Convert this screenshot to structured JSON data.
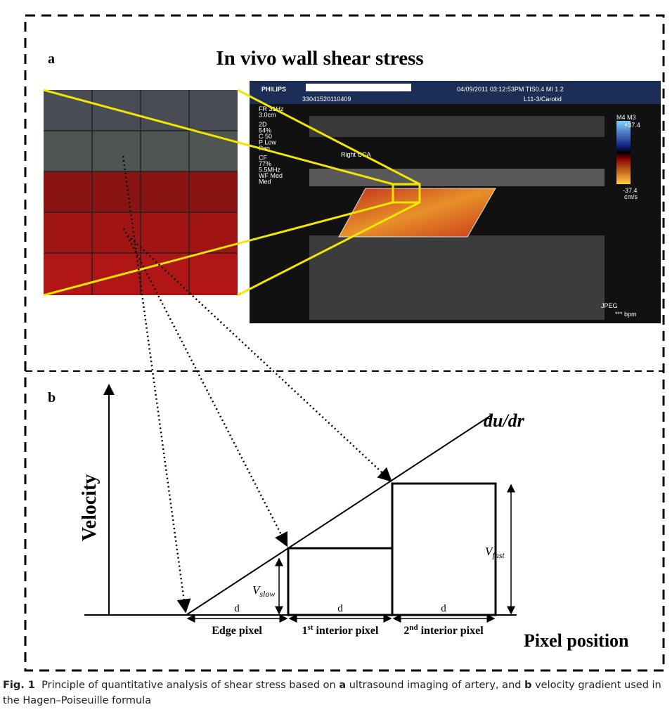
{
  "panel_a": {
    "label": "a",
    "title": "In vivo wall shear stress",
    "ultrasound": {
      "brand": "PHILIPS",
      "id": "33041520110409",
      "datetime": "04/09/2011   03:12:53PM   TIS0.4   MI 1.2",
      "probe": "L11-3/Carotid",
      "params": [
        "FR 31Hz",
        "3.0cm",
        "2D",
        "54%",
        "C 50",
        "P Low",
        "Pen",
        "CF",
        "77%",
        "5.5MHz",
        "WF Med",
        "Med"
      ],
      "vessel": "Right  CCA",
      "scale_top": "+37.4",
      "scale_bottom": "-37.4",
      "scale_unit": "cm/s",
      "scale_header": "M4 M3",
      "format": "JPEG",
      "bpm": "*** bpm"
    }
  },
  "panel_b": {
    "label": "b",
    "line_label": "du/dr",
    "y_axis": "Velocity",
    "x_axis": "Pixel position",
    "v_slow": {
      "main": "V",
      "sub": "slow"
    },
    "v_fast": {
      "main": "V",
      "sub": "fast"
    },
    "widths": [
      "d",
      "d",
      "d"
    ],
    "pixels": [
      {
        "text": "Edge pixel"
      },
      {
        "ordinal": "1",
        "sup": "st",
        "text": " interior pixel"
      },
      {
        "ordinal": "2",
        "sup": "nd",
        "text": " interior pixel"
      }
    ]
  },
  "caption": {
    "label": "Fig. 1",
    "parts": [
      "Principle of quantitative analysis of shear stress based on ",
      "a",
      " ultrasound imaging of artery, and ",
      "b",
      " velocity gradient used in the Hagen–Poiseuille formula"
    ]
  }
}
